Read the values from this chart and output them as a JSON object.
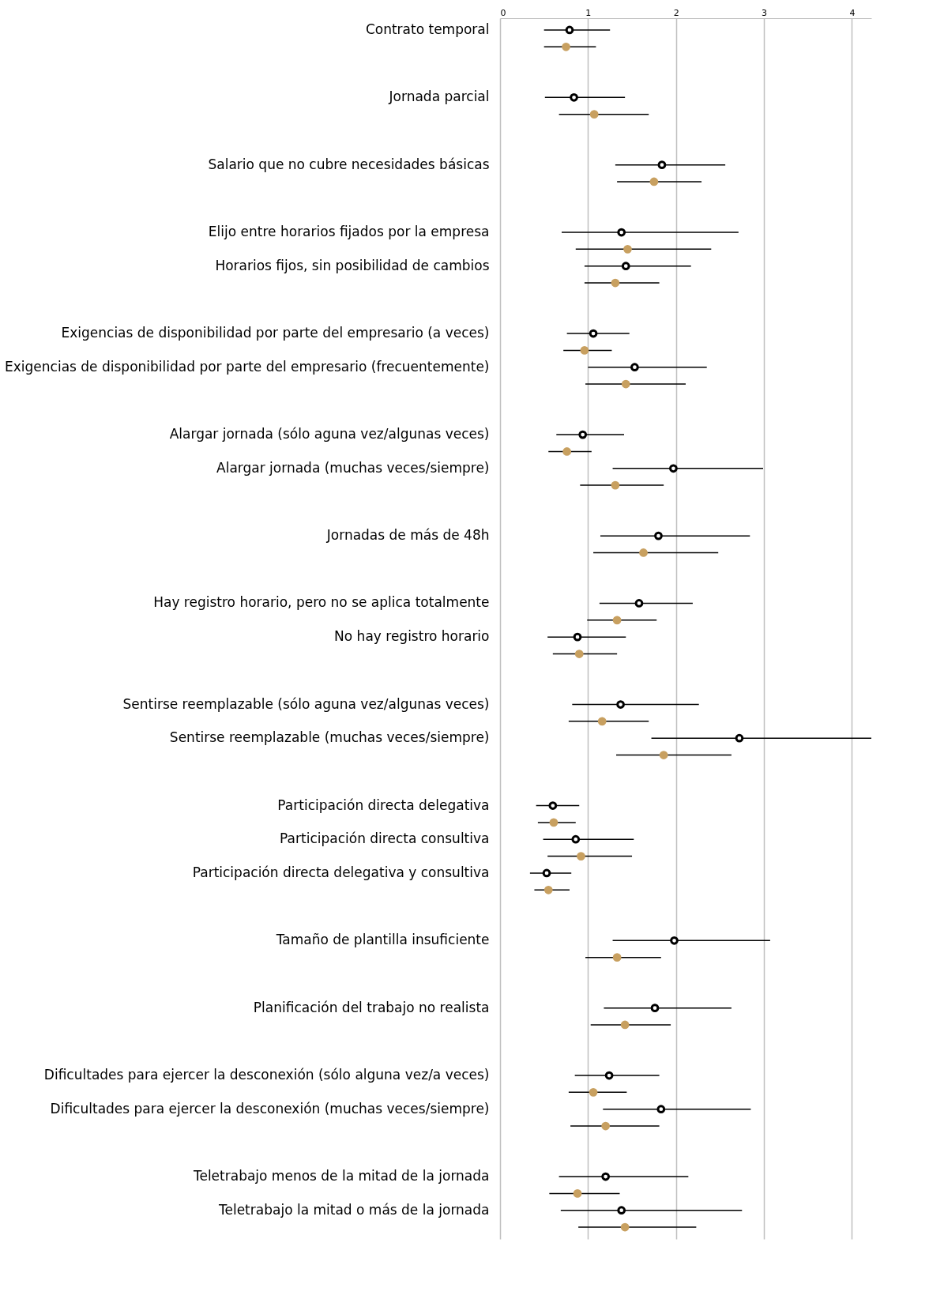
{
  "chart_data": {
    "type": "scatter",
    "orientation": "horizontal",
    "categories": [
      "Contrato temporal",
      null,
      "Jornada parcial",
      null,
      "Salario que no cubre necesidades básicas",
      null,
      "Elijo entre horarios fijados por la empresa",
      "Horarios fijos, sin posibilidad de cambios",
      null,
      "Exigencias de disponibilidad por parte del empresario (a veces)",
      "Exigencias de disponibilidad por parte del empresario (frecuentemente)",
      null,
      "Alargar jornada (sólo aguna vez/algunas veces)",
      "Alargar jornada (muchas veces/siempre)",
      null,
      "Jornadas de más de 48h",
      null,
      "Hay registro horario, pero no se aplica totalmente",
      "No hay registro horario",
      null,
      "Sentirse reemplazable (sólo aguna vez/algunas veces)",
      "Sentirse reemplazable (muchas veces/siempre)",
      null,
      "Participación directa delegativa",
      "Participación directa consultiva",
      "Participación directa delegativa y consultiva",
      null,
      "Tamaño de plantilla insuficiente",
      null,
      "Planificación del trabajo no realista",
      null,
      "Dificultades para ejercer la desconexión (sólo alguna vez/a veces)",
      "Dificultades para ejercer la desconexión (muchas veces/siempre)",
      null,
      "Teletrabajo menos de la mitad de la jornada",
      "Teletrabajo la mitad o más de la jornada"
    ],
    "series": [
      {
        "color": "#000000",
        "marker": "circle",
        "values": [
          0.79,
          null,
          0.84,
          null,
          1.84,
          null,
          1.38,
          1.43,
          null,
          1.06,
          1.53,
          null,
          0.94,
          1.97,
          null,
          1.8,
          null,
          1.58,
          0.88,
          null,
          1.37,
          2.72,
          null,
          0.6,
          0.86,
          0.53,
          null,
          1.98,
          null,
          1.76,
          null,
          1.24,
          1.83,
          null,
          1.2,
          1.38
        ],
        "errors": [
          [
            0.5,
            1.25
          ],
          null,
          [
            0.51,
            1.42
          ],
          null,
          [
            1.31,
            2.56
          ],
          null,
          [
            0.7,
            2.71
          ],
          [
            0.96,
            2.17
          ],
          null,
          [
            0.76,
            1.47
          ],
          [
            1.0,
            2.35
          ],
          null,
          [
            0.64,
            1.41
          ],
          [
            1.28,
            2.99
          ],
          null,
          [
            1.14,
            2.84
          ],
          null,
          [
            1.13,
            2.19
          ],
          [
            0.54,
            1.43
          ],
          null,
          [
            0.82,
            2.26
          ],
          [
            1.72,
            4.22
          ],
          null,
          [
            0.41,
            0.9
          ],
          [
            0.49,
            1.52
          ],
          [
            0.34,
            0.81
          ],
          null,
          [
            1.28,
            3.07
          ],
          null,
          [
            1.18,
            2.63
          ],
          null,
          [
            0.85,
            1.81
          ],
          [
            1.17,
            2.85
          ],
          null,
          [
            0.67,
            2.14
          ],
          [
            0.69,
            2.75
          ]
        ]
      },
      {
        "color": "#c8a060",
        "marker": "circle",
        "values": [
          0.75,
          null,
          1.07,
          null,
          1.75,
          null,
          1.45,
          1.31,
          null,
          0.96,
          1.43,
          null,
          0.76,
          1.31,
          null,
          1.63,
          null,
          1.33,
          0.9,
          null,
          1.16,
          1.86,
          null,
          0.61,
          0.92,
          0.55,
          null,
          1.33,
          null,
          1.42,
          null,
          1.06,
          1.2,
          null,
          0.88,
          1.42
        ],
        "errors": [
          [
            0.5,
            1.09
          ],
          null,
          [
            0.67,
            1.69
          ],
          null,
          [
            1.33,
            2.29
          ],
          null,
          [
            0.86,
            2.4
          ],
          [
            0.96,
            1.81
          ],
          null,
          [
            0.72,
            1.27
          ],
          [
            0.97,
            2.11
          ],
          null,
          [
            0.55,
            1.04
          ],
          [
            0.91,
            1.86
          ],
          null,
          [
            1.06,
            2.48
          ],
          null,
          [
            0.99,
            1.78
          ],
          [
            0.6,
            1.33
          ],
          null,
          [
            0.78,
            1.69
          ],
          [
            1.32,
            2.63
          ],
          null,
          [
            0.43,
            0.86
          ],
          [
            0.54,
            1.5
          ],
          [
            0.39,
            0.79
          ],
          null,
          [
            0.97,
            1.83
          ],
          null,
          [
            1.03,
            1.94
          ],
          null,
          [
            0.78,
            1.44
          ],
          [
            0.8,
            1.81
          ],
          null,
          [
            0.56,
            1.36
          ],
          [
            0.89,
            2.23
          ]
        ]
      }
    ],
    "xlim": [
      0,
      4.22
    ],
    "xticks": [
      0,
      1,
      2,
      3,
      4
    ],
    "grid": "x"
  }
}
